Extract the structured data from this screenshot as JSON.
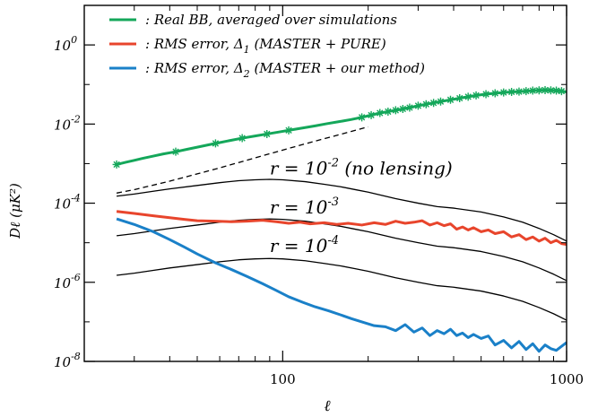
{
  "chart_data": {
    "type": "line",
    "xscale": "log",
    "yscale": "log",
    "xlim": [
      20,
      1000
    ],
    "ylim": [
      1e-08,
      10.0
    ],
    "xlabel": "ℓ",
    "ylabel": "Dℓ (μK²)",
    "xticks": [
      {
        "value": 100,
        "label": "100"
      },
      {
        "value": 1000,
        "label": "1000"
      }
    ],
    "yticks": [
      {
        "value": 1e-08,
        "base": "10",
        "exp": "-8"
      },
      {
        "value": 1e-06,
        "base": "10",
        "exp": "-6"
      },
      {
        "value": 0.0001,
        "base": "10",
        "exp": "-4"
      },
      {
        "value": 0.01,
        "base": "10",
        "exp": "-2"
      },
      {
        "value": 1,
        "base": "10",
        "exp": "0"
      }
    ],
    "legend_position": "top-left",
    "legend": [
      {
        "series": "real_bb",
        "text": ": Real BB, averaged over simulations"
      },
      {
        "series": "rms_pure",
        "text": ": RMS error, Δ",
        "sub": "1",
        "after": " (MASTER + PURE)"
      },
      {
        "series": "rms_ours",
        "text": ": RMS error, Δ",
        "sub": "2",
        "after": " (MASTER + our method)"
      }
    ],
    "annotations": [
      {
        "main": "r = 10",
        "sup": "-2",
        "after": " (no lensing)",
        "x": 90,
        "y": 0.00053
      },
      {
        "main": "r = 10",
        "sup": "-3",
        "after": "",
        "x": 90,
        "y": 5.5e-05
      },
      {
        "main": "r = 10",
        "sup": "-4",
        "after": "",
        "x": 90,
        "y": 5.8e-06
      }
    ],
    "series": [
      {
        "id": "real_bb",
        "color": "#14a75a",
        "marker": "asterisk",
        "x": [
          26,
          28,
          30,
          32,
          35,
          38,
          42,
          46,
          50,
          55,
          60,
          66,
          72,
          80,
          88,
          97,
          107,
          118,
          130,
          143,
          158,
          174,
          190,
          205,
          220,
          240,
          260,
          280,
          300,
          330,
          360,
          390,
          420,
          450,
          480,
          520,
          560,
          600,
          640,
          680,
          720,
          760,
          800,
          840,
          880,
          920,
          960,
          1000
        ],
        "y": [
          0.00095,
          0.00108,
          0.00121,
          0.00135,
          0.00155,
          0.00176,
          0.002,
          0.0023,
          0.0026,
          0.003,
          0.0034,
          0.0039,
          0.0044,
          0.005,
          0.0056,
          0.0063,
          0.0071,
          0.008,
          0.009,
          0.0102,
          0.0115,
          0.013,
          0.0148,
          0.0168,
          0.019,
          0.0212,
          0.0235,
          0.026,
          0.029,
          0.033,
          0.037,
          0.041,
          0.045,
          0.049,
          0.053,
          0.057,
          0.06,
          0.063,
          0.065,
          0.066,
          0.068,
          0.07,
          0.071,
          0.072,
          0.071,
          0.07,
          0.068,
          0.065
        ],
        "marker_x": [
          26,
          42,
          58,
          72,
          88,
          105,
          190,
          205,
          220,
          235,
          250,
          265,
          280,
          300,
          320,
          340,
          360,
          390,
          420,
          450,
          480,
          520,
          560,
          600,
          640,
          680,
          720,
          760,
          800,
          840,
          880,
          920,
          960
        ]
      },
      {
        "id": "rms_pure",
        "color": "#e8452c",
        "x": [
          26,
          30,
          35,
          40,
          45,
          50,
          58,
          66,
          75,
          85,
          95,
          105,
          115,
          125,
          140,
          155,
          170,
          190,
          210,
          230,
          250,
          270,
          290,
          310,
          330,
          350,
          370,
          390,
          410,
          430,
          450,
          470,
          500,
          530,
          560,
          600,
          640,
          680,
          720,
          760,
          800,
          840,
          880,
          920,
          960,
          1000
        ],
        "y": [
          6.2e-05,
          5.5e-05,
          4.8e-05,
          4.3e-05,
          3.9e-05,
          3.6e-05,
          3.5e-05,
          3.4e-05,
          3.5e-05,
          3.7e-05,
          3.4e-05,
          3.1e-05,
          3.3e-05,
          3e-05,
          3.2e-05,
          2.9e-05,
          3.1e-05,
          2.8e-05,
          3.2e-05,
          2.9e-05,
          3.5e-05,
          3.1e-05,
          3.3e-05,
          3.6e-05,
          2.8e-05,
          3.2e-05,
          2.7e-05,
          3e-05,
          2.2e-05,
          2.5e-05,
          2.1e-05,
          2.4e-05,
          1.9e-05,
          2.1e-05,
          1.7e-05,
          1.9e-05,
          1.4e-05,
          1.6e-05,
          1.2e-05,
          1.4e-05,
          1.1e-05,
          1.3e-05,
          1e-05,
          1.15e-05,
          9.5e-06,
          9e-06
        ]
      },
      {
        "id": "rms_ours",
        "color": "#1a80c8",
        "x": [
          26,
          30,
          35,
          40,
          45,
          50,
          58,
          66,
          75,
          85,
          95,
          105,
          118,
          130,
          145,
          160,
          175,
          190,
          210,
          230,
          250,
          270,
          290,
          310,
          330,
          350,
          370,
          390,
          410,
          430,
          450,
          470,
          500,
          530,
          560,
          600,
          640,
          680,
          720,
          760,
          800,
          840,
          880,
          920,
          960,
          1000
        ],
        "y": [
          4e-05,
          2.9e-05,
          1.9e-05,
          1.2e-05,
          7.8e-06,
          5.2e-06,
          3.1e-06,
          2.1e-06,
          1.4e-06,
          9.2e-07,
          6.2e-07,
          4.3e-07,
          3.1e-07,
          2.4e-07,
          1.9e-07,
          1.5e-07,
          1.2e-07,
          1e-07,
          8e-08,
          7.5e-08,
          6e-08,
          8.5e-08,
          5.5e-08,
          7e-08,
          4.5e-08,
          6e-08,
          5e-08,
          6.5e-08,
          4.5e-08,
          5.2e-08,
          4e-08,
          4.8e-08,
          3.8e-08,
          4.4e-08,
          2.6e-08,
          3.4e-08,
          2.2e-08,
          3.2e-08,
          2e-08,
          2.8e-08,
          1.8e-08,
          2.6e-08,
          2.1e-08,
          1.9e-08,
          2.4e-08,
          3e-08
        ]
      },
      {
        "id": "no_lensing",
        "color": "#000000",
        "dashed": true,
        "x": [
          26,
          30,
          40,
          50,
          60,
          80,
          100,
          130,
          160,
          200
        ],
        "y": [
          0.00018,
          0.00022,
          0.00036,
          0.00055,
          0.00078,
          0.0014,
          0.0022,
          0.0037,
          0.0055,
          0.0085
        ]
      },
      {
        "id": "r_1e-2",
        "color": "#000000",
        "x": [
          26,
          30,
          35,
          40,
          50,
          60,
          70,
          80,
          90,
          100,
          120,
          140,
          160,
          180,
          200,
          250,
          300,
          350,
          400,
          500,
          600,
          700,
          800,
          900,
          1000
        ],
        "y": [
          0.00015,
          0.00017,
          0.0002,
          0.00023,
          0.00028,
          0.00033,
          0.00037,
          0.00039,
          0.0004,
          0.00039,
          0.00035,
          0.0003,
          0.00026,
          0.00022,
          0.00019,
          0.00013,
          0.0001,
          8.2e-05,
          7.5e-05,
          6e-05,
          4.5e-05,
          3.3e-05,
          2.3e-05,
          1.6e-05,
          1.1e-05
        ]
      },
      {
        "id": "r_1e-3",
        "color": "#000000",
        "x": [
          26,
          30,
          35,
          40,
          50,
          60,
          70,
          80,
          90,
          100,
          120,
          140,
          160,
          180,
          200,
          250,
          300,
          350,
          400,
          500,
          600,
          700,
          800,
          900,
          1000
        ],
        "y": [
          1.5e-05,
          1.7e-05,
          2e-05,
          2.3e-05,
          2.8e-05,
          3.3e-05,
          3.7e-05,
          3.9e-05,
          4e-05,
          3.9e-05,
          3.5e-05,
          3e-05,
          2.6e-05,
          2.2e-05,
          1.9e-05,
          1.3e-05,
          1e-05,
          8.2e-06,
          7.5e-06,
          6e-06,
          4.5e-06,
          3.3e-06,
          2.3e-06,
          1.6e-06,
          1.1e-06
        ]
      },
      {
        "id": "r_1e-4",
        "color": "#000000",
        "x": [
          26,
          30,
          35,
          40,
          50,
          60,
          70,
          80,
          90,
          100,
          120,
          140,
          160,
          180,
          200,
          250,
          300,
          350,
          400,
          500,
          600,
          700,
          800,
          900,
          1000
        ],
        "y": [
          1.5e-06,
          1.7e-06,
          2e-06,
          2.3e-06,
          2.8e-06,
          3.3e-06,
          3.7e-06,
          3.9e-06,
          4e-06,
          3.9e-06,
          3.5e-06,
          3e-06,
          2.6e-06,
          2.2e-06,
          1.9e-06,
          1.3e-06,
          1e-06,
          8.2e-07,
          7.5e-07,
          6e-07,
          4.5e-07,
          3.3e-07,
          2.3e-07,
          1.6e-07,
          1.1e-07
        ]
      }
    ]
  }
}
